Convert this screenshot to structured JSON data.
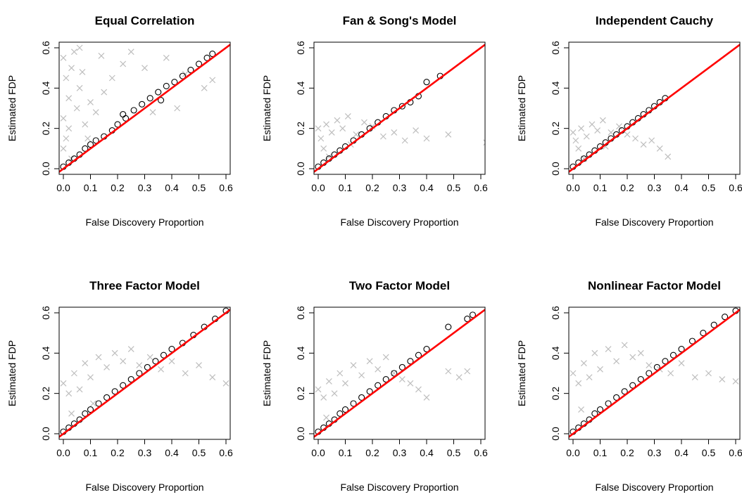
{
  "figure": {
    "xlabel": "False Discovery Proportion",
    "ylabel": "Estimated FDP"
  },
  "chart_data": [
    {
      "type": "scatter",
      "title": "Equal Correlation",
      "xlabel": "False Discovery Proportion",
      "ylabel": "Estimated FDP",
      "xlim": [
        0,
        0.6
      ],
      "ylim": [
        0,
        0.6
      ],
      "xticks": [
        "0.0",
        "0.1",
        "0.2",
        "0.3",
        "0.4",
        "0.5",
        "0.6"
      ],
      "yticks": [
        "0.0",
        "0.2",
        "0.4",
        "0.6"
      ],
      "reference_line": {
        "slope": 1,
        "intercept": 0,
        "color": "#ff0000"
      },
      "series": [
        {
          "marker": "x",
          "color": "#bebebe",
          "x": [
            0.0,
            0.01,
            0.02,
            0.0,
            0.03,
            0.05,
            0.01,
            0.06,
            0.08,
            0.1,
            0.0,
            0.02,
            0.04,
            0.07,
            0.12,
            0.15,
            0.03,
            0.09,
            0.18,
            0.22,
            0.06,
            0.14,
            0.25,
            0.3,
            0.38,
            0.45,
            0.52,
            0.55,
            0.42,
            0.33
          ],
          "y": [
            0.55,
            0.45,
            0.35,
            0.25,
            0.5,
            0.3,
            0.15,
            0.4,
            0.22,
            0.33,
            0.1,
            0.2,
            0.58,
            0.48,
            0.28,
            0.38,
            0.05,
            0.15,
            0.45,
            0.52,
            0.6,
            0.56,
            0.58,
            0.5,
            0.55,
            0.47,
            0.4,
            0.44,
            0.3,
            0.28
          ]
        },
        {
          "marker": "circle",
          "color": "#000000",
          "x": [
            0.0,
            0.02,
            0.04,
            0.06,
            0.08,
            0.1,
            0.12,
            0.15,
            0.18,
            0.2,
            0.23,
            0.26,
            0.29,
            0.32,
            0.35,
            0.38,
            0.41,
            0.44,
            0.47,
            0.5,
            0.53,
            0.55,
            0.36,
            0.22
          ],
          "y": [
            0.01,
            0.03,
            0.05,
            0.07,
            0.1,
            0.12,
            0.14,
            0.16,
            0.19,
            0.22,
            0.25,
            0.29,
            0.32,
            0.35,
            0.38,
            0.41,
            0.43,
            0.46,
            0.49,
            0.52,
            0.55,
            0.57,
            0.34,
            0.27
          ]
        }
      ]
    },
    {
      "type": "scatter",
      "title": "Fan & Song's Model",
      "xlabel": "False Discovery Proportion",
      "ylabel": "Estimated FDP",
      "xlim": [
        0,
        0.6
      ],
      "ylim": [
        0,
        0.6
      ],
      "xticks": [
        "0.0",
        "0.1",
        "0.2",
        "0.3",
        "0.4",
        "0.5",
        "0.6"
      ],
      "yticks": [
        "0.0",
        "0.2",
        "0.4",
        "0.6"
      ],
      "reference_line": {
        "slope": 1,
        "intercept": 0,
        "color": "#ff0000"
      },
      "series": [
        {
          "marker": "x",
          "color": "#bebebe",
          "x": [
            0.0,
            0.01,
            0.03,
            0.05,
            0.02,
            0.07,
            0.09,
            0.11,
            0.14,
            0.17,
            0.2,
            0.24,
            0.28,
            0.32,
            0.36,
            0.4,
            0.48,
            0.62,
            0.04,
            0.12
          ],
          "y": [
            0.2,
            0.15,
            0.22,
            0.18,
            0.1,
            0.24,
            0.2,
            0.26,
            0.17,
            0.23,
            0.21,
            0.16,
            0.18,
            0.14,
            0.19,
            0.15,
            0.17,
            0.13,
            0.06,
            0.12
          ]
        },
        {
          "marker": "circle",
          "color": "#000000",
          "x": [
            0.0,
            0.02,
            0.04,
            0.06,
            0.08,
            0.1,
            0.13,
            0.16,
            0.19,
            0.22,
            0.25,
            0.28,
            0.31,
            0.34,
            0.37,
            0.4,
            0.45
          ],
          "y": [
            0.01,
            0.03,
            0.05,
            0.07,
            0.09,
            0.11,
            0.14,
            0.17,
            0.2,
            0.23,
            0.26,
            0.29,
            0.31,
            0.33,
            0.36,
            0.43,
            0.46
          ]
        }
      ]
    },
    {
      "type": "scatter",
      "title": "Independent Cauchy",
      "xlabel": "False Discovery Proportion",
      "ylabel": "Estimated FDP",
      "xlim": [
        0,
        0.6
      ],
      "ylim": [
        0,
        0.6
      ],
      "xticks": [
        "0.0",
        "0.1",
        "0.2",
        "0.3",
        "0.4",
        "0.5",
        "0.6"
      ],
      "yticks": [
        "0.0",
        "0.2",
        "0.4",
        "0.6"
      ],
      "reference_line": {
        "slope": 1,
        "intercept": 0,
        "color": "#ff0000"
      },
      "series": [
        {
          "marker": "x",
          "color": "#bebebe",
          "x": [
            0.0,
            0.01,
            0.03,
            0.05,
            0.02,
            0.07,
            0.09,
            0.11,
            0.14,
            0.17,
            0.2,
            0.23,
            0.26,
            0.29,
            0.32,
            0.35,
            0.04,
            0.12
          ],
          "y": [
            0.18,
            0.14,
            0.2,
            0.16,
            0.1,
            0.22,
            0.19,
            0.24,
            0.18,
            0.21,
            0.17,
            0.15,
            0.12,
            0.14,
            0.1,
            0.06,
            0.05,
            0.11
          ]
        },
        {
          "marker": "circle",
          "color": "#000000",
          "x": [
            0.0,
            0.02,
            0.04,
            0.06,
            0.08,
            0.1,
            0.12,
            0.14,
            0.16,
            0.18,
            0.2,
            0.22,
            0.24,
            0.26,
            0.28,
            0.3,
            0.32,
            0.34
          ],
          "y": [
            0.01,
            0.03,
            0.05,
            0.07,
            0.09,
            0.11,
            0.13,
            0.15,
            0.17,
            0.19,
            0.21,
            0.23,
            0.25,
            0.27,
            0.29,
            0.31,
            0.33,
            0.35
          ]
        }
      ]
    },
    {
      "type": "scatter",
      "title": "Three Factor Model",
      "xlabel": "False Discovery Proportion",
      "ylabel": "Estimated FDP",
      "xlim": [
        0,
        0.6
      ],
      "ylim": [
        0,
        0.6
      ],
      "xticks": [
        "0.0",
        "0.1",
        "0.2",
        "0.3",
        "0.4",
        "0.5",
        "0.6"
      ],
      "yticks": [
        "0.0",
        "0.2",
        "0.4",
        "0.6"
      ],
      "reference_line": {
        "slope": 1,
        "intercept": 0,
        "color": "#ff0000"
      },
      "series": [
        {
          "marker": "x",
          "color": "#bebebe",
          "x": [
            0.0,
            0.02,
            0.04,
            0.06,
            0.08,
            0.1,
            0.13,
            0.16,
            0.19,
            0.22,
            0.25,
            0.28,
            0.32,
            0.36,
            0.4,
            0.45,
            0.5,
            0.55,
            0.6,
            0.03,
            0.11
          ],
          "y": [
            0.25,
            0.2,
            0.3,
            0.22,
            0.35,
            0.28,
            0.38,
            0.33,
            0.4,
            0.36,
            0.42,
            0.34,
            0.38,
            0.32,
            0.36,
            0.3,
            0.34,
            0.28,
            0.25,
            0.1,
            0.15
          ]
        },
        {
          "marker": "circle",
          "color": "#000000",
          "x": [
            0.0,
            0.02,
            0.04,
            0.06,
            0.08,
            0.1,
            0.13,
            0.16,
            0.19,
            0.22,
            0.25,
            0.28,
            0.31,
            0.34,
            0.37,
            0.4,
            0.44,
            0.48,
            0.52,
            0.56,
            0.6
          ],
          "y": [
            0.01,
            0.03,
            0.05,
            0.07,
            0.1,
            0.12,
            0.15,
            0.18,
            0.21,
            0.24,
            0.27,
            0.3,
            0.33,
            0.36,
            0.39,
            0.42,
            0.45,
            0.49,
            0.53,
            0.57,
            0.61
          ]
        }
      ]
    },
    {
      "type": "scatter",
      "title": "Two Factor Model",
      "xlabel": "False Discovery Proportion",
      "ylabel": "Estimated FDP",
      "xlim": [
        0,
        0.6
      ],
      "ylim": [
        0,
        0.6
      ],
      "xticks": [
        "0.0",
        "0.1",
        "0.2",
        "0.3",
        "0.4",
        "0.5",
        "0.6"
      ],
      "yticks": [
        "0.0",
        "0.2",
        "0.4",
        "0.6"
      ],
      "reference_line": {
        "slope": 1,
        "intercept": 0,
        "color": "#ff0000"
      },
      "series": [
        {
          "marker": "x",
          "color": "#bebebe",
          "x": [
            0.0,
            0.02,
            0.04,
            0.06,
            0.08,
            0.1,
            0.13,
            0.16,
            0.19,
            0.22,
            0.25,
            0.28,
            0.31,
            0.34,
            0.37,
            0.4,
            0.48,
            0.52,
            0.55,
            0.03
          ],
          "y": [
            0.22,
            0.18,
            0.26,
            0.2,
            0.3,
            0.25,
            0.34,
            0.29,
            0.36,
            0.32,
            0.38,
            0.3,
            0.27,
            0.25,
            0.22,
            0.18,
            0.31,
            0.28,
            0.31,
            0.08
          ]
        },
        {
          "marker": "circle",
          "color": "#000000",
          "x": [
            0.0,
            0.02,
            0.04,
            0.06,
            0.08,
            0.1,
            0.13,
            0.16,
            0.19,
            0.22,
            0.25,
            0.28,
            0.31,
            0.34,
            0.37,
            0.4,
            0.48,
            0.55,
            0.57
          ],
          "y": [
            0.01,
            0.03,
            0.05,
            0.07,
            0.1,
            0.12,
            0.15,
            0.18,
            0.21,
            0.24,
            0.27,
            0.3,
            0.33,
            0.36,
            0.39,
            0.42,
            0.53,
            0.57,
            0.59
          ]
        }
      ]
    },
    {
      "type": "scatter",
      "title": "Nonlinear Factor Model",
      "xlabel": "False Discovery Proportion",
      "ylabel": "Estimated FDP",
      "xlim": [
        0,
        0.6
      ],
      "ylim": [
        0,
        0.6
      ],
      "xticks": [
        "0.0",
        "0.1",
        "0.2",
        "0.3",
        "0.4",
        "0.5",
        "0.6"
      ],
      "yticks": [
        "0.0",
        "0.2",
        "0.4",
        "0.6"
      ],
      "reference_line": {
        "slope": 1,
        "intercept": 0,
        "color": "#ff0000"
      },
      "series": [
        {
          "marker": "x",
          "color": "#bebebe",
          "x": [
            0.0,
            0.02,
            0.04,
            0.06,
            0.08,
            0.1,
            0.13,
            0.16,
            0.19,
            0.22,
            0.25,
            0.28,
            0.32,
            0.36,
            0.4,
            0.45,
            0.5,
            0.55,
            0.6,
            0.03
          ],
          "y": [
            0.3,
            0.25,
            0.35,
            0.28,
            0.4,
            0.32,
            0.42,
            0.36,
            0.44,
            0.38,
            0.4,
            0.34,
            0.32,
            0.3,
            0.35,
            0.28,
            0.3,
            0.27,
            0.26,
            0.12
          ]
        },
        {
          "marker": "circle",
          "color": "#000000",
          "x": [
            0.0,
            0.02,
            0.04,
            0.06,
            0.08,
            0.1,
            0.13,
            0.16,
            0.19,
            0.22,
            0.25,
            0.28,
            0.31,
            0.34,
            0.37,
            0.4,
            0.44,
            0.48,
            0.52,
            0.56,
            0.6
          ],
          "y": [
            0.01,
            0.03,
            0.05,
            0.07,
            0.1,
            0.12,
            0.15,
            0.18,
            0.21,
            0.24,
            0.27,
            0.3,
            0.33,
            0.36,
            0.39,
            0.42,
            0.46,
            0.5,
            0.54,
            0.58,
            0.61
          ]
        }
      ]
    }
  ]
}
